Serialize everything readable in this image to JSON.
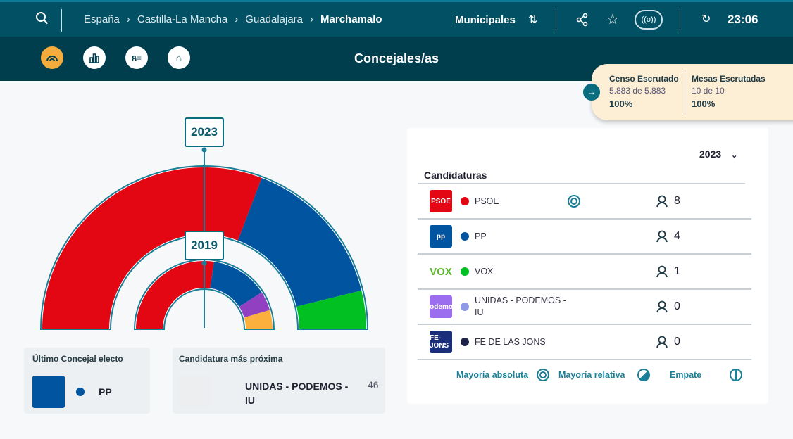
{
  "header": {
    "breadcrumb": [
      "España",
      "Castilla-La Mancha",
      "Guadalajara"
    ],
    "current": "Marchamalo",
    "election_type": "Municipales",
    "time": "23:06"
  },
  "subnav": {
    "title": "Concejales/as"
  },
  "census": {
    "censo_label": "Censo Escrutado",
    "censo_value": "5.883 de 5.883",
    "censo_pct": "100%",
    "mesas_label": "Mesas Escrutadas",
    "mesas_value": "10 de 10",
    "mesas_pct": "100%"
  },
  "chart_data": {
    "type": "hemicycle",
    "title": "Concejales/as",
    "rings": [
      {
        "year": "2023",
        "label": "2023",
        "parties": [
          {
            "name": "PSOE",
            "seats": 8,
            "color": "#e30613"
          },
          {
            "name": "PP",
            "seats": 4,
            "color": "#0054a0"
          },
          {
            "name": "VOX",
            "seats": 1,
            "color": "#00c022"
          }
        ]
      },
      {
        "year": "2019",
        "label": "2019",
        "parties": [
          {
            "name": "PSOE",
            "seats": 6,
            "color": "#e30613"
          },
          {
            "name": "PP",
            "seats": 3,
            "color": "#0054a0"
          },
          {
            "name": "UNIDAS - PODEMOS - IU",
            "seats": 1,
            "color": "#9140c1"
          },
          {
            "name": "other",
            "seats": 1,
            "color": "#fbaf3d"
          }
        ]
      }
    ]
  },
  "last_elected": {
    "label": "Último Concejal electo",
    "party": "PP",
    "color": "#0054a0"
  },
  "closest": {
    "label": "Candidatura más próxima",
    "party": "UNIDAS - PODEMOS - IU",
    "votes": "46"
  },
  "table": {
    "year": "2023",
    "heading": "Candidaturas",
    "rows": [
      {
        "logo": "PSOE",
        "name": "PSOE",
        "color": "#e30613",
        "logo_bg": "#e30613",
        "seats": "8",
        "majority": true
      },
      {
        "logo": "pp",
        "name": "PP",
        "color": "#0054a0",
        "logo_bg": "#0054a0",
        "seats": "4"
      },
      {
        "logo": "VOX",
        "name": "VOX",
        "color": "#00c022",
        "logo_bg": "#ffffff",
        "seats": "1"
      },
      {
        "logo": "Podemos",
        "name": "UNIDAS - PODEMOS - IU",
        "color": "#8f9ae6",
        "logo_bg": "#9b6ef0",
        "seats": "0"
      },
      {
        "logo": "FE-JONS",
        "name": "FE DE LAS JONS",
        "color": "#1c2346",
        "logo_bg": "#1a2e7a",
        "seats": "0"
      }
    ]
  },
  "legend": {
    "absolute": "Mayoría absoluta",
    "relative": "Mayoría relativa",
    "tie": "Empate"
  }
}
